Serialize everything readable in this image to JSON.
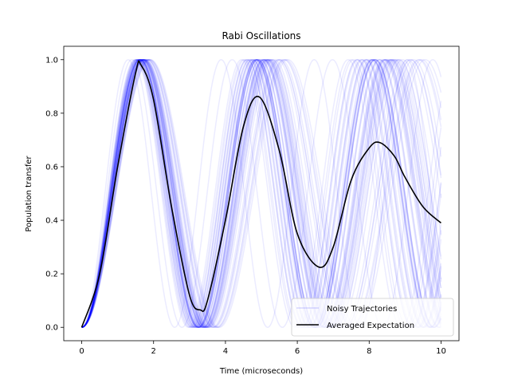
{
  "chart_data": {
    "type": "line",
    "title": "Rabi Oscillations",
    "xlabel": "Time (microseconds)",
    "ylabel": "Population transfer",
    "xlim": [
      -0.5,
      10.5
    ],
    "ylim": [
      -0.05,
      1.05
    ],
    "xticks": [
      0,
      2,
      4,
      6,
      8,
      10
    ],
    "yticks": [
      0.0,
      0.2,
      0.4,
      0.6,
      0.8,
      1.0
    ],
    "xtick_labels": [
      "0",
      "2",
      "4",
      "6",
      "8",
      "10"
    ],
    "ytick_labels": [
      "0.0",
      "0.2",
      "0.4",
      "0.6",
      "0.8",
      "1.0"
    ],
    "grid": false,
    "legend": {
      "placement": "bottom-right",
      "entries": [
        "Noisy Trajectories",
        "Averaged Expectation"
      ]
    },
    "series": [
      {
        "name": "Averaged Expectation",
        "color": "#000000",
        "x": [
          0.0,
          0.5,
          1.0,
          1.5,
          1.65,
          2.0,
          2.5,
          3.0,
          3.3,
          3.5,
          4.0,
          4.5,
          4.95,
          5.5,
          6.0,
          6.6,
          7.0,
          7.5,
          8.0,
          8.3,
          8.7,
          9.0,
          9.5,
          10.0
        ],
        "y": [
          0.0,
          0.2,
          0.6,
          0.95,
          0.98,
          0.85,
          0.45,
          0.12,
          0.065,
          0.1,
          0.4,
          0.75,
          0.86,
          0.66,
          0.35,
          0.225,
          0.3,
          0.55,
          0.67,
          0.69,
          0.64,
          0.56,
          0.45,
          0.39
        ]
      },
      {
        "name": "Noisy Trajectories",
        "color": "#0000ff",
        "description_count": 60,
        "frequency_spread": 0.12,
        "period_mean": 3.3
      }
    ]
  }
}
